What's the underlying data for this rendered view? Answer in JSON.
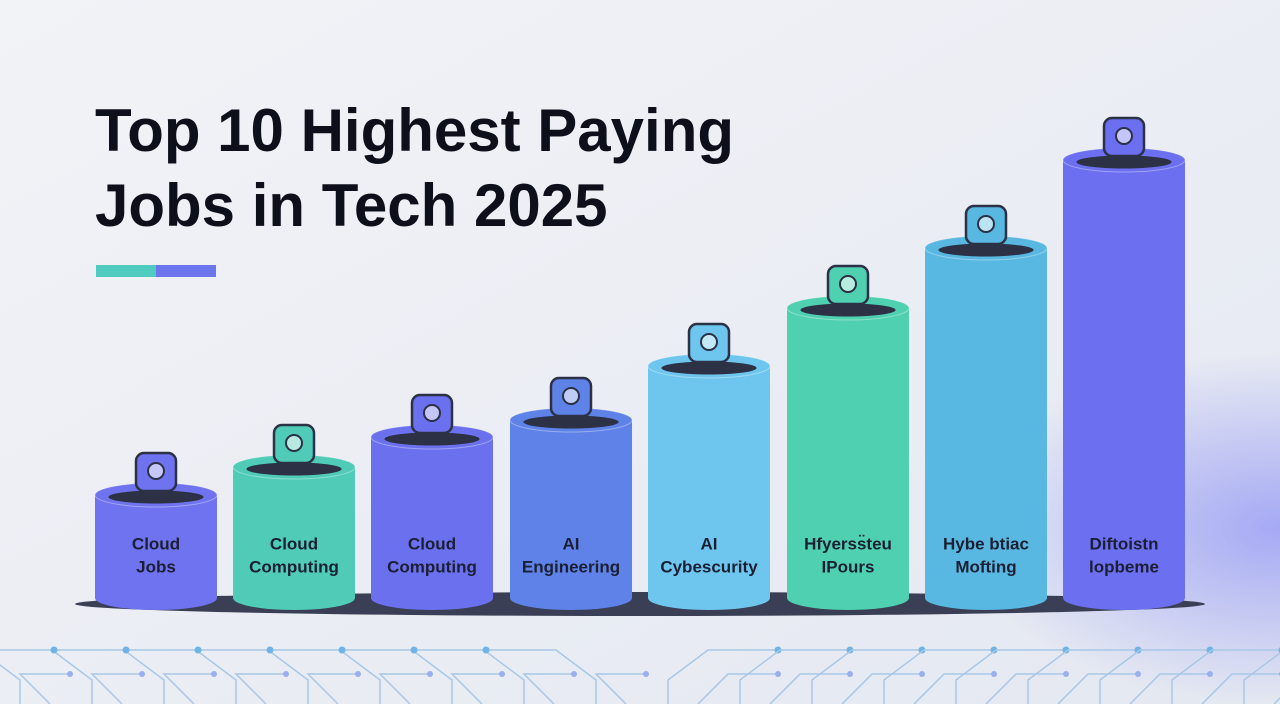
{
  "title": {
    "lines": [
      "Top 10 Highest Paying",
      "Jobs in Tech 2025"
    ]
  },
  "columns": [
    {
      "label_lines": [
        "Cloud",
        "Jobs"
      ]
    },
    {
      "label_lines": [
        "Cloud",
        "Computing"
      ]
    },
    {
      "label_lines": [
        "Cloud",
        "Computing"
      ]
    },
    {
      "label_lines": [
        "AI",
        "Engineering"
      ]
    },
    {
      "label_lines": [
        "AI",
        "Cybescurity"
      ]
    },
    {
      "label_lines": [
        "Hfyerss̈teu",
        "IPours"
      ]
    },
    {
      "label_lines": [
        "Hybe btiac",
        "Mofting"
      ]
    },
    {
      "label_lines": [
        "Diftoistn",
        "lopbeme"
      ]
    }
  ]
}
